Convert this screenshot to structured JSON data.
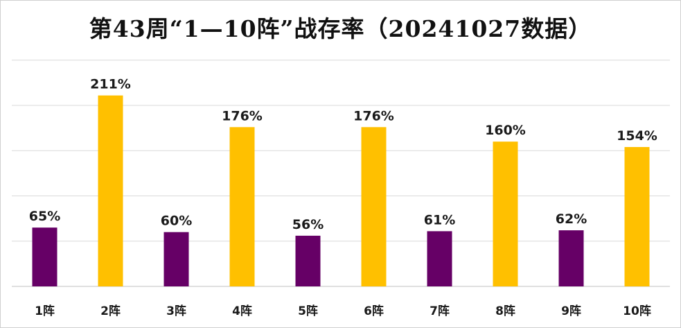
{
  "chart_data": {
    "type": "bar",
    "title": "第43周“1—10阵”战存率（20241027数据）",
    "xlabel": "",
    "ylabel": "",
    "categories": [
      "1阵",
      "2阵",
      "3阵",
      "4阵",
      "5阵",
      "6阵",
      "7阵",
      "8阵",
      "9阵",
      "10阵"
    ],
    "values": [
      65,
      211,
      60,
      176,
      56,
      176,
      61,
      160,
      62,
      154
    ],
    "data_labels": [
      "65%",
      "211%",
      "60%",
      "176%",
      "56%",
      "176%",
      "61%",
      "160%",
      "62%",
      "154%"
    ],
    "unit": "%",
    "ylim": [
      0,
      250
    ],
    "y_gridlines": [
      50,
      100,
      150,
      200,
      250
    ],
    "grid": true,
    "legend": "none",
    "colors": {
      "odd_bars": "#660066",
      "even_bars": "#ffc000"
    },
    "bar_colors": [
      "#660066",
      "#ffc000",
      "#660066",
      "#ffc000",
      "#660066",
      "#ffc000",
      "#660066",
      "#ffc000",
      "#660066",
      "#ffc000"
    ]
  }
}
